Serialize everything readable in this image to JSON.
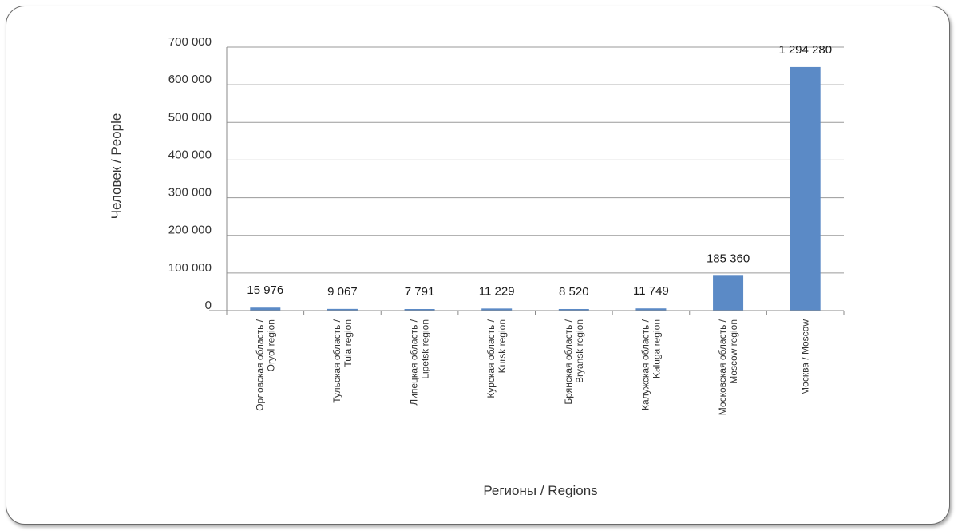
{
  "chart_data": {
    "type": "bar",
    "title": "",
    "xlabel": "Регионы / Regions",
    "ylabel": "Человек / People",
    "ylim": [
      0,
      700000
    ],
    "yticks": [
      "700 000",
      "600 000",
      "500 000",
      "400 000",
      "300 000",
      "200 000",
      "100 000",
      "0"
    ],
    "grid": true,
    "legend": "none",
    "bar_color": "#5b8ac6",
    "categories": [
      [
        "Орловская область /",
        "Oryol region"
      ],
      [
        "Тульская область /",
        "Tula region"
      ],
      [
        "Липецкая область /",
        "Lipetsk region"
      ],
      [
        "Курская область /",
        "Kursk region"
      ],
      [
        "Брянская область /",
        "Bryansk region"
      ],
      [
        "Калужская область /",
        "Kaluga region"
      ],
      [
        "Московская область /",
        "Moscow region"
      ],
      [
        "Москва / Moscow"
      ]
    ],
    "values": [
      15976,
      9067,
      7791,
      11229,
      8520,
      11749,
      185360,
      1294280
    ],
    "data_labels": [
      "15 976",
      "9 067",
      "7 791",
      "11 229",
      "8 520",
      "11 749",
      "185 360",
      "1 294 280"
    ]
  }
}
